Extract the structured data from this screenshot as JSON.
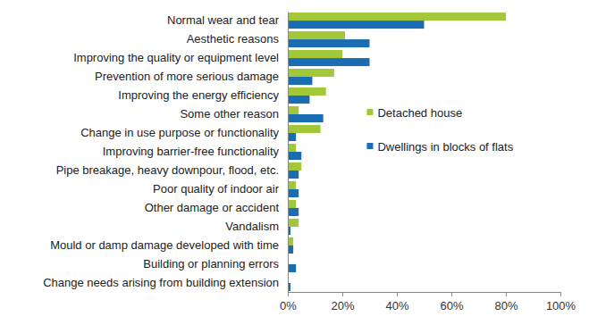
{
  "chart_data": {
    "type": "bar",
    "orientation": "horizontal",
    "categories": [
      "Normal wear and tear",
      "Aesthetic reasons",
      "Improving the quality or equipment level",
      "Prevention of more serious damage",
      "Improving the energy efficiency",
      "Some other reason",
      "Change in use purpose or functionality",
      "Improving barrier-free functionality",
      "Pipe breakage, heavy downpour, flood, etc.",
      "Poor quality of indoor air",
      "Other damage or accident",
      "Vandalism",
      "Mould or damp damage developed with time",
      "Building or planning errors",
      "Change needs arising from building extension"
    ],
    "series": [
      {
        "name": "Detached house",
        "color": "#a2c83a",
        "values": [
          80,
          21,
          20,
          17,
          14,
          4,
          12,
          3,
          5,
          3,
          3,
          4,
          2,
          0,
          0
        ]
      },
      {
        "name": "Dwellings in blocks of flats",
        "color": "#1a6db3",
        "values": [
          50,
          30,
          30,
          9,
          8,
          13,
          3,
          5,
          4,
          4,
          4,
          1,
          2,
          3,
          1
        ]
      }
    ],
    "xlim": [
      0,
      100
    ],
    "xticks": [
      {
        "value": 0,
        "label": "0%"
      },
      {
        "value": 20,
        "label": "20%"
      },
      {
        "value": 40,
        "label": "40%"
      },
      {
        "value": 60,
        "label": "60%"
      },
      {
        "value": 80,
        "label": "80%"
      },
      {
        "value": 100,
        "label": "100%"
      }
    ],
    "grid": false,
    "legend": "right"
  }
}
